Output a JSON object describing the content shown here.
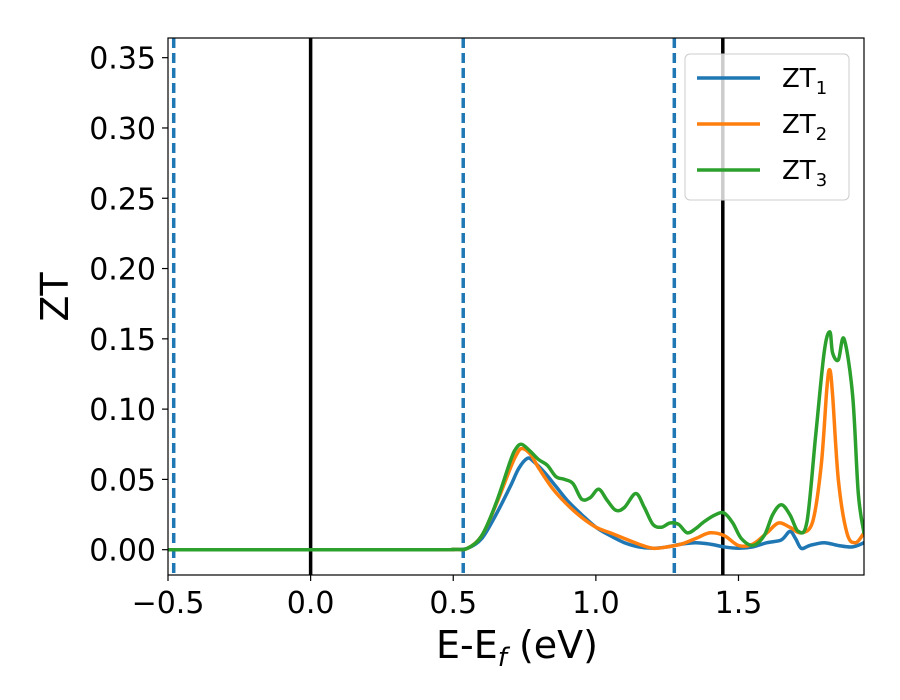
{
  "chart_data": {
    "type": "line",
    "title": "",
    "xlabel": {
      "main": "E-E",
      "sub": "f",
      "suffix": " (eV)"
    },
    "ylabel": "ZT",
    "xlim": [
      -0.5,
      1.94
    ],
    "ylim": [
      -0.018,
      0.364
    ],
    "xticks": [
      "−0.5",
      "0.0",
      "0.5",
      "1.0",
      "1.5"
    ],
    "xtick_values": [
      -0.5,
      0.0,
      0.5,
      1.0,
      1.5
    ],
    "yticks": [
      "0.00",
      "0.05",
      "0.10",
      "0.15",
      "0.20",
      "0.25",
      "0.30",
      "0.35"
    ],
    "ytick_values": [
      0.0,
      0.05,
      0.1,
      0.15,
      0.2,
      0.25,
      0.3,
      0.35
    ],
    "grid": false,
    "legend_position": "top-right",
    "vlines": [
      {
        "x": -0.48,
        "style": "dashed",
        "color": "#1f77b4"
      },
      {
        "x": 0.0,
        "style": "solid",
        "color": "#000000"
      },
      {
        "x": 0.535,
        "style": "dashed",
        "color": "#1f77b4"
      },
      {
        "x": 1.275,
        "style": "dashed",
        "color": "#1f77b4"
      },
      {
        "x": 1.445,
        "style": "solid",
        "color": "#000000"
      }
    ],
    "series": [
      {
        "name": "ZT",
        "sub": "1",
        "color": "#1f77b4",
        "x": [
          -0.5,
          0.4,
          0.5,
          0.55,
          0.6,
          0.65,
          0.7,
          0.73,
          0.76,
          0.78,
          0.82,
          0.86,
          0.9,
          0.95,
          1.0,
          1.05,
          1.1,
          1.15,
          1.2,
          1.25,
          1.3,
          1.35,
          1.4,
          1.45,
          1.5,
          1.55,
          1.6,
          1.65,
          1.68,
          1.7,
          1.72,
          1.75,
          1.8,
          1.85,
          1.9,
          1.94
        ],
        "y": [
          0.0,
          0.0,
          0.0002,
          0.001,
          0.008,
          0.025,
          0.045,
          0.058,
          0.065,
          0.063,
          0.055,
          0.045,
          0.035,
          0.025,
          0.016,
          0.01,
          0.005,
          0.002,
          0.001,
          0.002,
          0.004,
          0.005,
          0.004,
          0.002,
          0.001,
          0.002,
          0.005,
          0.007,
          0.013,
          0.008,
          0.001,
          0.003,
          0.005,
          0.003,
          0.002,
          0.005
        ]
      },
      {
        "name": "ZT",
        "sub": "2",
        "color": "#ff7f0e",
        "x": [
          -0.5,
          0.4,
          0.5,
          0.55,
          0.6,
          0.65,
          0.7,
          0.72,
          0.74,
          0.77,
          0.8,
          0.85,
          0.9,
          0.95,
          1.0,
          1.05,
          1.1,
          1.15,
          1.2,
          1.25,
          1.3,
          1.35,
          1.4,
          1.45,
          1.5,
          1.55,
          1.6,
          1.64,
          1.68,
          1.72,
          1.76,
          1.79,
          1.81,
          1.82,
          1.83,
          1.85,
          1.88,
          1.91,
          1.94
        ],
        "y": [
          0.0,
          0.0,
          0.0002,
          0.001,
          0.01,
          0.032,
          0.058,
          0.067,
          0.072,
          0.068,
          0.058,
          0.043,
          0.032,
          0.023,
          0.016,
          0.012,
          0.008,
          0.004,
          0.001,
          0.002,
          0.004,
          0.008,
          0.012,
          0.01,
          0.003,
          0.004,
          0.012,
          0.019,
          0.016,
          0.012,
          0.02,
          0.06,
          0.115,
          0.128,
          0.11,
          0.05,
          0.012,
          0.005,
          0.012
        ]
      },
      {
        "name": "ZT",
        "sub": "3",
        "color": "#2ca02c",
        "x": [
          -0.5,
          0.4,
          0.5,
          0.55,
          0.6,
          0.65,
          0.7,
          0.72,
          0.74,
          0.77,
          0.8,
          0.83,
          0.86,
          0.89,
          0.92,
          0.95,
          0.98,
          1.01,
          1.04,
          1.07,
          1.1,
          1.14,
          1.17,
          1.2,
          1.23,
          1.26,
          1.29,
          1.32,
          1.35,
          1.38,
          1.42,
          1.45,
          1.48,
          1.51,
          1.55,
          1.59,
          1.62,
          1.65,
          1.68,
          1.71,
          1.74,
          1.77,
          1.8,
          1.82,
          1.83,
          1.85,
          1.87,
          1.9,
          1.92,
          1.94
        ],
        "y": [
          0.0,
          0.0,
          0.0002,
          0.001,
          0.01,
          0.033,
          0.063,
          0.072,
          0.075,
          0.07,
          0.064,
          0.06,
          0.052,
          0.05,
          0.047,
          0.036,
          0.037,
          0.043,
          0.035,
          0.028,
          0.03,
          0.04,
          0.03,
          0.018,
          0.016,
          0.019,
          0.018,
          0.012,
          0.015,
          0.02,
          0.025,
          0.026,
          0.019,
          0.008,
          0.003,
          0.01,
          0.025,
          0.032,
          0.025,
          0.013,
          0.02,
          0.08,
          0.14,
          0.155,
          0.14,
          0.135,
          0.15,
          0.11,
          0.04,
          0.012
        ]
      }
    ]
  }
}
